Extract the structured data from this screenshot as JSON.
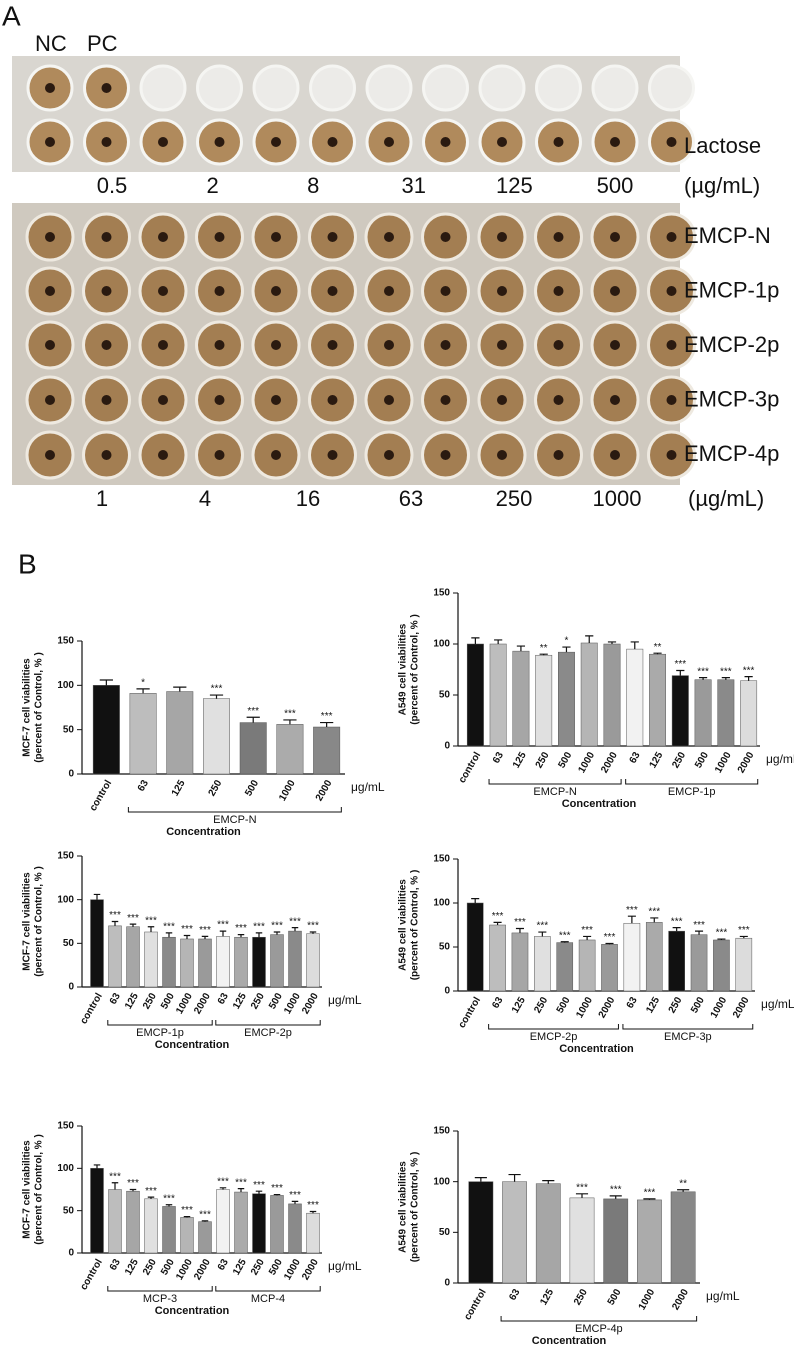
{
  "panel_a": {
    "label": "A",
    "controls": [
      "NC",
      "PC"
    ],
    "lactose_label": "Lactose",
    "lactose_unit": "(µg/mL)",
    "lactose_concentrations": [
      "0.5",
      "2",
      "8",
      "31",
      "125",
      "500"
    ],
    "rows": [
      "EMCP-N",
      "EMCP-1p",
      "EMCP-2p",
      "EMCP-3p",
      "EMCP-4p"
    ],
    "concentrations": [
      "1",
      "4",
      "16",
      "63",
      "250",
      "1000"
    ],
    "unit": "(µg/mL)"
  },
  "panel_b": {
    "label": "B"
  },
  "chart_data": [
    {
      "type": "bar",
      "ylabel": [
        "MCF-7 cell viabilities",
        "(percent of Control, % )"
      ],
      "xlabel": "Concentration",
      "unit": "μg/mL",
      "categories": [
        "control",
        "63",
        "125",
        "250",
        "500",
        "1000",
        "2000"
      ],
      "values": [
        100,
        91,
        93,
        85,
        58,
        56,
        53
      ],
      "errors": [
        6,
        5,
        5,
        4,
        6,
        5,
        5
      ],
      "significance": [
        null,
        "*",
        null,
        "***",
        "***",
        "***",
        "***"
      ],
      "colors": [
        "#111111",
        "#bdbdbd",
        "#a6a6a6",
        "#e0e0e0",
        "#7a7a7a",
        "#ababab",
        "#888888"
      ],
      "groups": [
        {
          "label": "EMCP-N",
          "start": 1,
          "end": 6
        }
      ],
      "ylim": [
        0,
        150
      ],
      "yticks": [
        0,
        50,
        100,
        150
      ]
    },
    {
      "type": "bar",
      "ylabel": [
        "A549 cell viabilities",
        "(percent of Control, % )"
      ],
      "xlabel": "Concentration",
      "unit": "μg/mL",
      "categories": [
        "control",
        "63",
        "125",
        "250",
        "500",
        "1000",
        "2000",
        "63",
        "125",
        "250",
        "500",
        "1000",
        "2000"
      ],
      "values": [
        100,
        100,
        93,
        89,
        92,
        101,
        100,
        95,
        90,
        69,
        65,
        65,
        64
      ],
      "errors": [
        6,
        4,
        5,
        1,
        5,
        7,
        2,
        7,
        1,
        5,
        2,
        2,
        4
      ],
      "significance": [
        null,
        null,
        null,
        "**",
        "*",
        null,
        null,
        null,
        "**",
        "***",
        "***",
        "***",
        "***"
      ],
      "colors": [
        "#111111",
        "#bdbdbd",
        "#a6a6a6",
        "#e0e0e0",
        "#8a8a8a",
        "#b5b5b5",
        "#9a9a9a",
        "#f2f2f2",
        "#aaaaaa",
        "#111111",
        "#9a9a9a",
        "#8a8a8a",
        "#dcdcdc"
      ],
      "groups": [
        {
          "label": "EMCP-N",
          "start": 1,
          "end": 6
        },
        {
          "label": "EMCP-1p",
          "start": 7,
          "end": 12
        }
      ],
      "ylim": [
        0,
        150
      ],
      "yticks": [
        0,
        50,
        100,
        150
      ]
    },
    {
      "type": "bar",
      "ylabel": [
        "MCF-7 cell viabilities",
        "(percent of Control, % )"
      ],
      "xlabel": "Concentration",
      "unit": "μg/mL",
      "categories": [
        "control",
        "63",
        "125",
        "250",
        "500",
        "1000",
        "2000",
        "63",
        "125",
        "250",
        "500",
        "1000",
        "2000"
      ],
      "values": [
        100,
        70,
        69,
        63,
        57,
        55,
        55,
        58,
        57,
        57,
        60,
        64,
        61
      ],
      "errors": [
        6,
        5,
        3,
        6,
        5,
        4,
        3,
        6,
        3,
        5,
        3,
        4,
        2
      ],
      "significance": [
        null,
        "***",
        "***",
        "***",
        "***",
        "***",
        "***",
        "***",
        "***",
        "***",
        "***",
        "***",
        "***"
      ],
      "colors": [
        "#111111",
        "#bdbdbd",
        "#a6a6a6",
        "#e0e0e0",
        "#8a8a8a",
        "#b5b5b5",
        "#9a9a9a",
        "#f2f2f2",
        "#aaaaaa",
        "#111111",
        "#9a9a9a",
        "#8a8a8a",
        "#dcdcdc"
      ],
      "groups": [
        {
          "label": "EMCP-1p",
          "start": 1,
          "end": 6
        },
        {
          "label": "EMCP-2p",
          "start": 7,
          "end": 12
        }
      ],
      "ylim": [
        0,
        150
      ],
      "yticks": [
        0,
        50,
        100,
        150
      ]
    },
    {
      "type": "bar",
      "ylabel": [
        "A549 cell viabilities",
        "(percent of Control, % )"
      ],
      "xlabel": "Concentration",
      "unit": "μg/mL",
      "categories": [
        "control",
        "63",
        "125",
        "250",
        "500",
        "1000",
        "2000",
        "63",
        "125",
        "250",
        "500",
        "1000",
        "2000"
      ],
      "values": [
        100,
        75,
        66,
        62,
        55,
        58,
        53,
        77,
        78,
        68,
        64,
        58,
        60
      ],
      "errors": [
        5,
        3,
        5,
        5,
        1,
        4,
        1,
        8,
        5,
        4,
        4,
        1,
        2
      ],
      "significance": [
        null,
        "***",
        "***",
        "***",
        "***",
        "***",
        "***",
        "***",
        "***",
        "***",
        "***",
        "***",
        "***"
      ],
      "colors": [
        "#111111",
        "#bdbdbd",
        "#a6a6a6",
        "#e0e0e0",
        "#8a8a8a",
        "#b5b5b5",
        "#9a9a9a",
        "#f2f2f2",
        "#aaaaaa",
        "#111111",
        "#9a9a9a",
        "#8a8a8a",
        "#dcdcdc"
      ],
      "groups": [
        {
          "label": "EMCP-2p",
          "start": 1,
          "end": 6
        },
        {
          "label": "EMCP-3p",
          "start": 7,
          "end": 12
        }
      ],
      "ylim": [
        0,
        150
      ],
      "yticks": [
        0,
        50,
        100,
        150
      ]
    },
    {
      "type": "bar",
      "ylabel": [
        "MCF-7 cell viabilities",
        "(percent of Control, % )"
      ],
      "xlabel": "Concentration",
      "unit": "μg/mL",
      "categories": [
        "control",
        "63",
        "125",
        "250",
        "500",
        "1000",
        "2000",
        "63",
        "125",
        "250",
        "500",
        "1000",
        "2000"
      ],
      "values": [
        100,
        75,
        73,
        64,
        55,
        42,
        37,
        75,
        72,
        70,
        68,
        58,
        47
      ],
      "errors": [
        4,
        8,
        2,
        2,
        2,
        1,
        1,
        2,
        4,
        3,
        1,
        3,
        2
      ],
      "significance": [
        null,
        "***",
        "***",
        "***",
        "***",
        "***",
        "***",
        "***",
        "***",
        "***",
        "***",
        "***",
        "***"
      ],
      "colors": [
        "#111111",
        "#bdbdbd",
        "#a6a6a6",
        "#e0e0e0",
        "#8a8a8a",
        "#b5b5b5",
        "#9a9a9a",
        "#f2f2f2",
        "#aaaaaa",
        "#111111",
        "#9a9a9a",
        "#8a8a8a",
        "#dcdcdc"
      ],
      "groups": [
        {
          "label": "MCP-3",
          "start": 1,
          "end": 6
        },
        {
          "label": "MCP-4",
          "start": 7,
          "end": 12
        }
      ],
      "ylim": [
        0,
        150
      ],
      "yticks": [
        0,
        50,
        100,
        150
      ]
    },
    {
      "type": "bar",
      "ylabel": [
        "A549 cell viabilities",
        "(percent of Control, % )"
      ],
      "xlabel": "Concentration",
      "unit": "μg/mL",
      "categories": [
        "control",
        "63",
        "125",
        "250",
        "500",
        "1000",
        "2000"
      ],
      "values": [
        100,
        100,
        98,
        84,
        83,
        82,
        90
      ],
      "errors": [
        4,
        7,
        3,
        4,
        3,
        1,
        2
      ],
      "significance": [
        null,
        null,
        null,
        "***",
        "***",
        "***",
        "**"
      ],
      "colors": [
        "#111111",
        "#bdbdbd",
        "#a6a6a6",
        "#e0e0e0",
        "#7a7a7a",
        "#ababab",
        "#888888"
      ],
      "groups": [
        {
          "label": "EMCP-4p",
          "start": 1,
          "end": 6
        }
      ],
      "ylim": [
        0,
        150
      ],
      "yticks": [
        0,
        50,
        100,
        150
      ]
    }
  ]
}
